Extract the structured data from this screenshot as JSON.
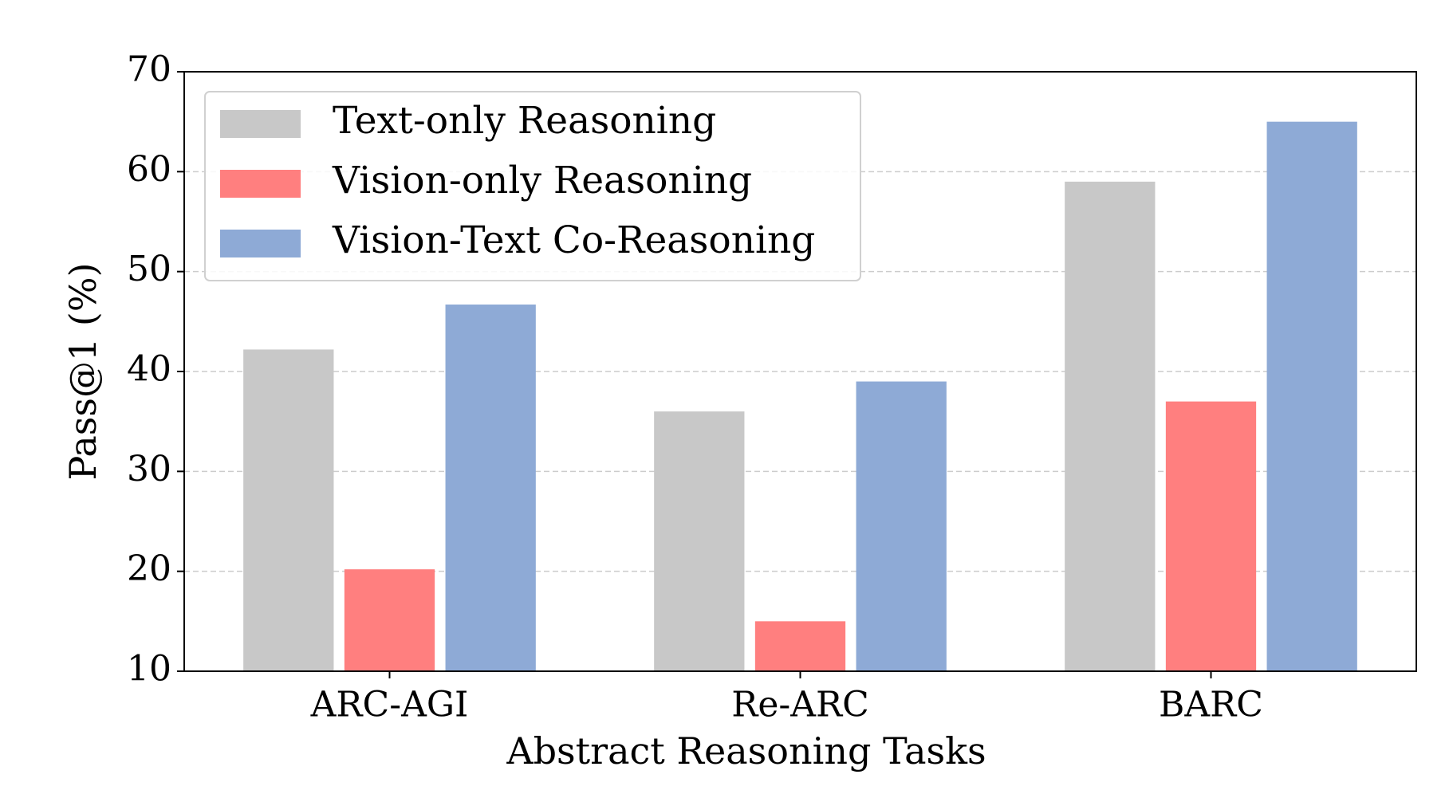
{
  "chart_data": {
    "type": "bar",
    "x_label": "Abstract Reasoning Tasks",
    "y_label": "Pass@1 (%)",
    "categories": [
      "ARC-AGI",
      "Re-ARC",
      "BARC"
    ],
    "series": [
      {
        "name": "Text-only Reasoning",
        "color": "#c8c8c8",
        "values": [
          42.2,
          36,
          59
        ]
      },
      {
        "name": "Vision-only Reasoning",
        "color": "#ff7f7f",
        "values": [
          20.2,
          15,
          37
        ]
      },
      {
        "name": "Vision-Text Co-Reasoning",
        "color": "#8eaad6",
        "values": [
          46.7,
          39,
          65
        ]
      }
    ],
    "ylim": [
      10,
      70
    ],
    "yticks": [
      10,
      20,
      30,
      40,
      50,
      60,
      70
    ],
    "grid": true,
    "legend": "upper left"
  }
}
